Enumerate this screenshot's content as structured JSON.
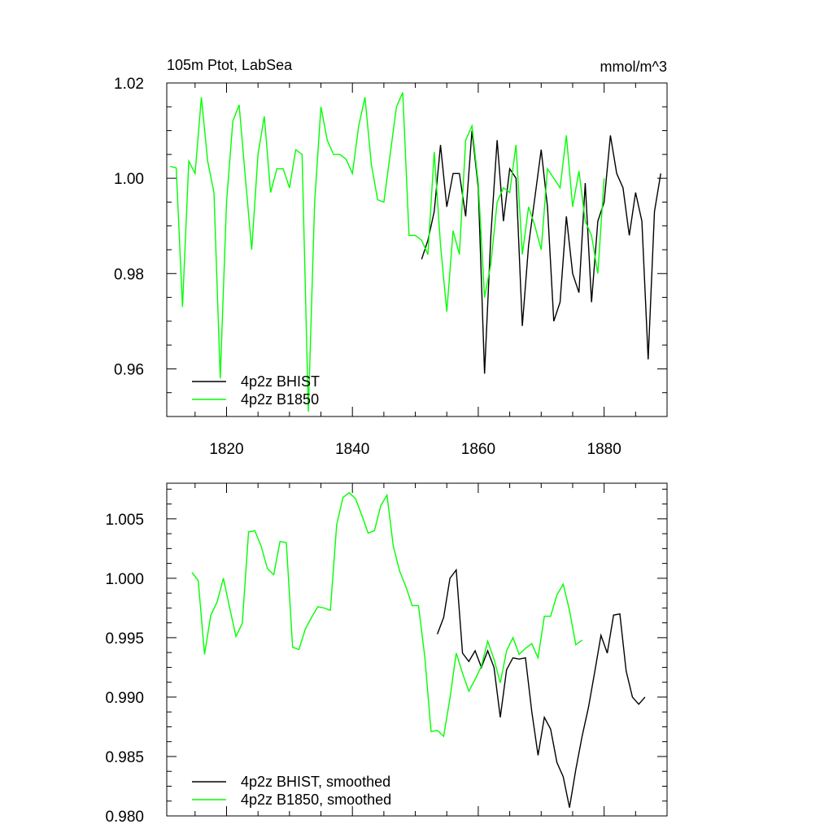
{
  "chart_data": [
    {
      "type": "line",
      "title_left": "105m Ptot, LabSea",
      "title_right": "mmol/m^3",
      "xlim": [
        1810.5,
        1890
      ],
      "ylim": [
        0.95,
        1.02
      ],
      "xticks": [
        1820,
        1840,
        1860,
        1880
      ],
      "xtick_labels": [
        "1820",
        "1840",
        "1860",
        "1880"
      ],
      "yticks": [
        0.96,
        0.98,
        1.0,
        1.02
      ],
      "ytick_labels": [
        "0.96",
        "0.98",
        "1.00",
        "1.02"
      ],
      "legend_position": "bottom-left",
      "series": [
        {
          "name": "4p2z BHIST",
          "color": "#000000",
          "x": [
            1851,
            1852,
            1853,
            1854,
            1855,
            1856,
            1857,
            1858,
            1859,
            1860,
            1861,
            1862,
            1863,
            1864,
            1865,
            1866,
            1867,
            1868,
            1869,
            1870,
            1871,
            1872,
            1873,
            1874,
            1875,
            1876,
            1877,
            1878,
            1879,
            1880,
            1881,
            1882,
            1883,
            1884,
            1885,
            1886,
            1887,
            1888,
            1889
          ],
          "y": [
            0.983,
            0.987,
            0.993,
            1.007,
            0.994,
            1.001,
            1.001,
            0.992,
            1.01,
            0.998,
            0.959,
            0.988,
            1.008,
            0.991,
            1.002,
            1.0,
            0.969,
            0.986,
            0.996,
            1.006,
            0.994,
            0.97,
            0.974,
            0.992,
            0.98,
            0.976,
            0.999,
            0.974,
            0.991,
            0.995,
            1.009,
            1.001,
            0.998,
            0.988,
            0.997,
            0.991,
            0.962,
            0.993,
            1.001
          ]
        },
        {
          "name": "4p2z B1850",
          "color": "#00ff00",
          "x": [
            1811,
            1812,
            1813,
            1814,
            1815,
            1816,
            1817,
            1818,
            1819,
            1820,
            1821,
            1822,
            1823,
            1824,
            1825,
            1826,
            1827,
            1828,
            1829,
            1830,
            1831,
            1832,
            1833,
            1834,
            1835,
            1836,
            1837,
            1838,
            1839,
            1840,
            1841,
            1842,
            1843,
            1844,
            1845,
            1846,
            1847,
            1848,
            1849,
            1850,
            1851,
            1852,
            1853,
            1854,
            1855,
            1856,
            1857,
            1858,
            1859,
            1860,
            1861,
            1862,
            1863,
            1864,
            1865,
            1866,
            1867,
            1868,
            1869,
            1870,
            1871,
            1872,
            1873,
            1874,
            1875,
            1876,
            1877,
            1878,
            1879,
            1880
          ],
          "y": [
            1.0025,
            1.0022,
            0.973,
            1.0036,
            1.001,
            1.017,
            1.0036,
            0.997,
            0.958,
            0.995,
            1.012,
            1.0154,
            1.0,
            0.985,
            1.005,
            1.013,
            0.997,
            1.002,
            1.002,
            0.998,
            1.006,
            1.005,
            0.951,
            0.995,
            1.015,
            1.008,
            1.005,
            1.005,
            1.004,
            1.001,
            1.011,
            1.017,
            1.003,
            0.9955,
            0.995,
            1.005,
            1.015,
            1.018,
            0.988,
            0.988,
            0.987,
            0.984,
            1.0055,
            0.986,
            0.972,
            0.989,
            0.984,
            1.008,
            1.011,
            0.999,
            0.975,
            0.982,
            0.995,
            0.998,
            0.997,
            1.007,
            0.984,
            0.994,
            0.99,
            0.985,
            1.002,
            1.0,
            0.998,
            1.009,
            0.994,
            1.0015,
            0.991,
            0.988,
            0.98,
            1.0
          ]
        }
      ]
    },
    {
      "type": "line",
      "xlim": [
        1810.5,
        1890
      ],
      "ylim": [
        0.98,
        1.008
      ],
      "xticks": [
        1820,
        1840,
        1860,
        1880
      ],
      "yticks": [
        0.98,
        0.985,
        0.99,
        0.995,
        1.0,
        1.005
      ],
      "ytick_labels": [
        "0.980",
        "0.985",
        "0.990",
        "0.995",
        "1.000",
        "1.005"
      ],
      "legend_position": "bottom-left",
      "series": [
        {
          "name": "4p2z BHIST, smoothed",
          "color": "#000000",
          "x": [
            1853.5,
            1854.5,
            1855.5,
            1856.5,
            1857.5,
            1858.5,
            1859.5,
            1860.5,
            1861.5,
            1862.5,
            1863.5,
            1864.5,
            1865.5,
            1866.5,
            1867.5,
            1868.5,
            1869.5,
            1870.5,
            1871.5,
            1872.5,
            1873.5,
            1874.5,
            1875.5,
            1876.5,
            1877.5,
            1878.5,
            1879.5,
            1880.5,
            1881.5,
            1882.5,
            1883.5,
            1884.5,
            1885.5,
            1886.5
          ],
          "y": [
            0.9953,
            0.9967,
            1.0,
            1.0007,
            0.9937,
            0.993,
            0.9939,
            0.9925,
            0.9939,
            0.9925,
            0.9883,
            0.9923,
            0.9933,
            0.9932,
            0.9933,
            0.9888,
            0.9851,
            0.9883,
            0.9873,
            0.9845,
            0.9833,
            0.9807,
            0.9839,
            0.9867,
            0.9891,
            0.9921,
            0.9952,
            0.9937,
            0.9969,
            0.997,
            0.9922,
            0.99,
            0.9894,
            0.99
          ]
        },
        {
          "name": "4p2z B1850, smoothed",
          "color": "#00ff00",
          "x": [
            1814.5,
            1815.5,
            1816.5,
            1817.5,
            1818.5,
            1819.5,
            1820.5,
            1821.5,
            1822.5,
            1823.5,
            1824.5,
            1825.5,
            1826.5,
            1827.5,
            1828.5,
            1829.5,
            1830.5,
            1831.5,
            1832.5,
            1833.5,
            1834.5,
            1835.5,
            1836.5,
            1837.5,
            1838.5,
            1839.5,
            1840.5,
            1841.5,
            1842.5,
            1843.5,
            1844.5,
            1845.5,
            1846.5,
            1847.5,
            1848.5,
            1849.5,
            1850.5,
            1851.5,
            1852.5,
            1853.5,
            1854.5,
            1855.5,
            1856.5,
            1857.5,
            1858.5,
            1859.5,
            1860.5,
            1861.5,
            1862.5,
            1863.5,
            1864.5,
            1865.5,
            1866.5,
            1867.5,
            1868.5,
            1869.5,
            1870.5,
            1871.5,
            1872.5,
            1873.5,
            1874.5,
            1875.5,
            1876.5
          ],
          "y": [
            1.0005,
            0.9998,
            0.9936,
            0.9969,
            0.998,
            1.0,
            0.9975,
            0.9951,
            0.9962,
            1.0039,
            1.004,
            1.0027,
            1.0008,
            1.0003,
            1.0031,
            1.003,
            0.9942,
            0.994,
            0.9957,
            0.9967,
            0.9976,
            0.9975,
            0.9973,
            1.0045,
            1.0068,
            1.0072,
            1.0067,
            1.0053,
            1.0038,
            1.004,
            1.0061,
            1.007,
            1.0027,
            1.0006,
            0.9993,
            0.9977,
            0.9977,
            0.9934,
            0.9871,
            0.9872,
            0.9867,
            0.9899,
            0.9937,
            0.992,
            0.9905,
            0.9915,
            0.9926,
            0.9947,
            0.9932,
            0.9912,
            0.9939,
            0.995,
            0.9936,
            0.9941,
            0.9945,
            0.9933,
            0.9968,
            0.9968,
            0.9986,
            0.9995,
            0.9973,
            0.9944,
            0.9948
          ]
        }
      ]
    }
  ]
}
